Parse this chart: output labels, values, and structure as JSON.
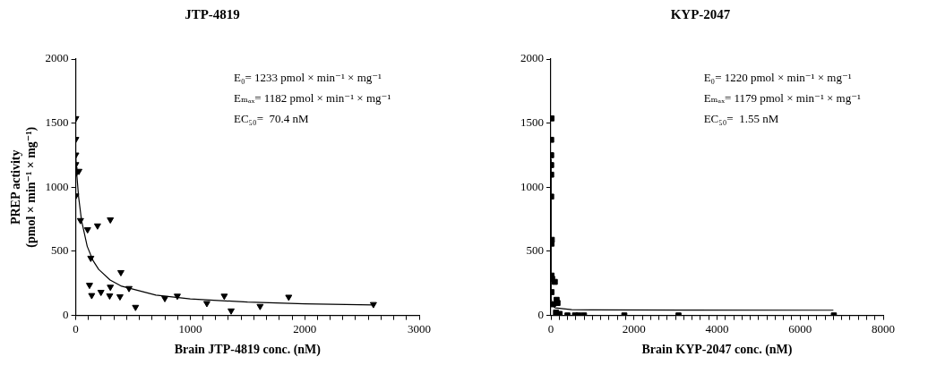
{
  "chart_data": [
    {
      "type": "scatter",
      "title": "JTP-4819",
      "xlabel": "Brain JTP-4819 conc. (nM)",
      "ylabel": "PREP activity\n(pmol × min⁻¹ × mg⁻¹)",
      "xlim": [
        0,
        3000
      ],
      "ylim": [
        0,
        2000
      ],
      "yticks": [
        0,
        500,
        1000,
        1500,
        2000
      ],
      "xticks": [
        0,
        {
          "value": 111.1,
          "label": null
        },
        {
          "value": 222.2,
          "label": null
        },
        {
          "value": 333.3,
          "label": null
        },
        {
          "value": 444.4,
          "label": null
        },
        {
          "value": 555.6,
          "label": null
        },
        {
          "value": 666.7,
          "label": null
        },
        {
          "value": 777.8,
          "label": null
        },
        {
          "value": 888.9,
          "label": null
        },
        1000,
        {
          "value": 1111.1,
          "label": null
        },
        {
          "value": 1222.2,
          "label": null
        },
        {
          "value": 1333.3,
          "label": null
        },
        {
          "value": 1444.4,
          "label": null
        },
        {
          "value": 1555.6,
          "label": null
        },
        {
          "value": 1666.7,
          "label": null
        },
        {
          "value": 1777.8,
          "label": null
        },
        {
          "value": 1888.9,
          "label": null
        },
        2000,
        {
          "value": 2111.1,
          "label": null
        },
        {
          "value": 2222.2,
          "label": null
        },
        {
          "value": 2333.3,
          "label": null
        },
        {
          "value": 2444.4,
          "label": null
        },
        {
          "value": 2555.6,
          "label": null
        },
        {
          "value": 2666.7,
          "label": null
        },
        {
          "value": 2777.8,
          "label": null
        },
        {
          "value": 2888.9,
          "label": null
        },
        3000
      ],
      "annotations": [
        "E₀= 1233 pmol × min⁻¹ × mg⁻¹",
        "Eₘₐₓ= 1182 pmol × min⁻¹ × mg⁻¹",
        "EC₅₀=  70.4 nM"
      ],
      "series": [
        {
          "type": "scatter",
          "marker": "triangle",
          "color": "#000000",
          "x": [
            0,
            0,
            0,
            0,
            0,
            27,
            0,
            41,
            103,
            190,
            302,
            131,
            120,
            139,
            220,
            302,
            296,
            386,
            394,
            465,
            522,
            778,
            887,
            1145,
            1297,
            1357,
            1610,
            1860,
            2600
          ],
          "values": [
            1537,
            1375,
            1253,
            1178,
            1108,
            1126,
            934,
            742,
            670,
            700,
            747,
            448,
            237,
            157,
            182,
            222,
            154,
            147,
            336,
            212,
            65,
            134,
            152,
            95,
            152,
            37,
            72,
            144,
            87
          ]
        },
        {
          "type": "line",
          "marker": "none",
          "color": "#000000",
          "x": [
            0,
            5,
            10,
            25,
            50,
            100,
            150,
            200,
            300,
            400,
            700,
            1000,
            1500,
            2000,
            2600
          ],
          "values": [
            1233,
            1155,
            1086,
            923,
            742,
            539,
            429,
            359,
            276,
            228,
            159,
            129,
            104,
            91,
            82
          ]
        }
      ]
    },
    {
      "type": "scatter",
      "title": "KYP-2047",
      "xlabel": "Brain KYP-2047 conc. (nM)",
      "xlim": [
        0,
        8000
      ],
      "ylim": [
        0,
        2000
      ],
      "yticks": [
        0,
        500,
        1000,
        1500,
        2000
      ],
      "xticks": [
        0,
        {
          "value": 200,
          "label": null
        },
        {
          "value": 400,
          "label": null
        },
        {
          "value": 600,
          "label": null
        },
        {
          "value": 800,
          "label": null
        },
        {
          "value": 1000,
          "label": null
        },
        {
          "value": 1200,
          "label": null
        },
        {
          "value": 1400,
          "label": null
        },
        {
          "value": 1600,
          "label": null
        },
        {
          "value": 1800,
          "label": null
        },
        2000,
        {
          "value": 2200,
          "label": null
        },
        {
          "value": 2400,
          "label": null
        },
        {
          "value": 2600,
          "label": null
        },
        {
          "value": 2800,
          "label": null
        },
        {
          "value": 3000,
          "label": null
        },
        {
          "value": 3200,
          "label": null
        },
        {
          "value": 3400,
          "label": null
        },
        {
          "value": 3600,
          "label": null
        },
        {
          "value": 3800,
          "label": null
        },
        4000,
        {
          "value": 4200,
          "label": null
        },
        {
          "value": 4400,
          "label": null
        },
        {
          "value": 4600,
          "label": null
        },
        {
          "value": 4800,
          "label": null
        },
        {
          "value": 5000,
          "label": null
        },
        {
          "value": 5200,
          "label": null
        },
        {
          "value": 5400,
          "label": null
        },
        {
          "value": 5600,
          "label": null
        },
        {
          "value": 5800,
          "label": null
        },
        6000,
        {
          "value": 6200,
          "label": null
        },
        {
          "value": 6400,
          "label": null
        },
        {
          "value": 6600,
          "label": null
        },
        {
          "value": 6800,
          "label": null
        },
        {
          "value": 7000,
          "label": null
        },
        {
          "value": 7200,
          "label": null
        },
        {
          "value": 7400,
          "label": null
        },
        {
          "value": 7600,
          "label": null
        },
        {
          "value": 7800,
          "label": null
        },
        8000
      ],
      "annotations": [
        "E₀= 1220 pmol × min⁻¹ × mg⁻¹",
        "Eₘₐₓ= 1179 pmol × min⁻¹ × mg⁻¹",
        "EC₅₀=  1.55 nM"
      ],
      "series": [
        {
          "type": "scatter",
          "marker": "square",
          "color": "#000000",
          "x": [
            15,
            7,
            7,
            7,
            7,
            7,
            22,
            15,
            15,
            30,
            94,
            15,
            51,
            138,
            160,
            123,
            210,
            399,
            580,
            667,
            797,
            1768,
            3072,
            6812
          ],
          "values": [
            1537,
            1370,
            1250,
            1173,
            1098,
            927,
            590,
            560,
            311,
            286,
            262,
            182,
            87,
            122,
            97,
            22,
            12,
            0,
            0,
            0,
            0,
            0,
            0,
            0
          ]
        },
        {
          "type": "line",
          "marker": "none",
          "color": "#000000",
          "x": [
            0,
            0.5,
            1,
            2,
            5,
            10,
            20,
            50,
            100,
            500,
            1000,
            6800
          ],
          "values": [
            1220,
            932,
            758,
            556,
            320,
            199,
            126,
            76,
            59,
            45,
            43,
            41
          ]
        }
      ]
    }
  ]
}
